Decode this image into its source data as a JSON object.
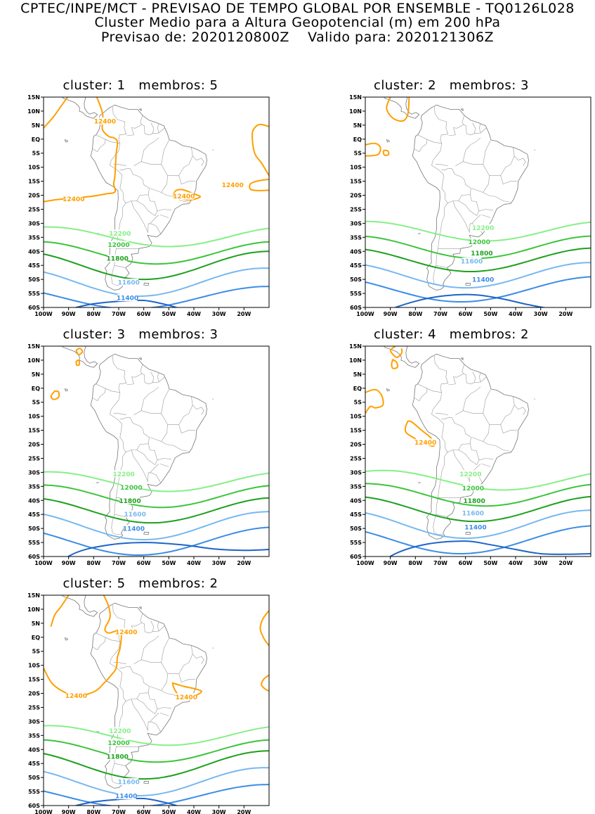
{
  "header": {
    "line1": "CPTEC/INPE/MCT - PREVISAO DE TEMPO GLOBAL POR ENSEMBLE - TQ0126L028",
    "line2": "Cluster Medio para a Altura Geopotencial (m) em 200 hPa",
    "line3": "Previsao de: 2020120800Z    Valido para: 2020121306Z"
  },
  "colors": {
    "c12400": "#ff9f00",
    "c12200": "#86f086",
    "c12000": "#3cc43c",
    "c11800": "#1ea01e",
    "c11600": "#78b8f0",
    "c11400": "#3c8ce6",
    "c11200": "#1e64c8"
  },
  "axes": {
    "lat_labels": [
      "15N",
      "10N",
      "5N",
      "EQ",
      "5S",
      "10S",
      "15S",
      "20S",
      "25S",
      "30S",
      "35S",
      "40S",
      "45S",
      "50S",
      "55S",
      "60S"
    ],
    "lon_labels": [
      "100W",
      "90W",
      "80W",
      "70W",
      "60W",
      "50W",
      "40W",
      "30W",
      "20W"
    ]
  },
  "panels": [
    {
      "title": "cluster: 1   membros: 5",
      "contours": [
        {
          "level": "12400",
          "labels": [
            "12400",
            "12400",
            "12400",
            "12400"
          ]
        },
        {
          "level": "12200",
          "labels": [
            "12200"
          ]
        },
        {
          "level": "12000",
          "labels": [
            "12000"
          ]
        },
        {
          "level": "11800",
          "labels": [
            "11800"
          ]
        },
        {
          "level": "11600",
          "labels": [
            "11600"
          ]
        },
        {
          "level": "11400",
          "labels": [
            "11400"
          ]
        }
      ]
    },
    {
      "title": "cluster: 2   membros: 3",
      "contours": [
        {
          "level": "12200",
          "labels": [
            "12200"
          ]
        },
        {
          "level": "12000",
          "labels": [
            "12000"
          ]
        },
        {
          "level": "11800",
          "labels": [
            "11800"
          ]
        },
        {
          "level": "11600",
          "labels": [
            "11600"
          ]
        },
        {
          "level": "11400",
          "labels": [
            "11400"
          ]
        }
      ]
    },
    {
      "title": "cluster: 3   membros: 3",
      "contours": [
        {
          "level": "12200",
          "labels": [
            "12200"
          ]
        },
        {
          "level": "12000",
          "labels": [
            "12000"
          ]
        },
        {
          "level": "11800",
          "labels": [
            "11800"
          ]
        },
        {
          "level": "11600",
          "labels": [
            "11600"
          ]
        },
        {
          "level": "11400",
          "labels": [
            "11400"
          ]
        }
      ]
    },
    {
      "title": "cluster: 4   membros: 2",
      "contours": [
        {
          "level": "12400",
          "labels": [
            "12400"
          ]
        },
        {
          "level": "12200",
          "labels": [
            "12200"
          ]
        },
        {
          "level": "12000",
          "labels": [
            "12000"
          ]
        },
        {
          "level": "11800",
          "labels": [
            "11800"
          ]
        },
        {
          "level": "11600",
          "labels": [
            "11600"
          ]
        },
        {
          "level": "11400",
          "labels": [
            "11400"
          ]
        }
      ]
    },
    {
      "title": "cluster: 5   membros: 2",
      "contours": [
        {
          "level": "12400",
          "labels": [
            "12400",
            "12400",
            "12400"
          ]
        },
        {
          "level": "12200",
          "labels": [
            "12200"
          ]
        },
        {
          "level": "12000",
          "labels": [
            "12000"
          ]
        },
        {
          "level": "11800",
          "labels": [
            "11800"
          ]
        },
        {
          "level": "11600",
          "labels": [
            "11600"
          ]
        },
        {
          "level": "11400",
          "labels": [
            "11400"
          ]
        }
      ]
    }
  ]
}
